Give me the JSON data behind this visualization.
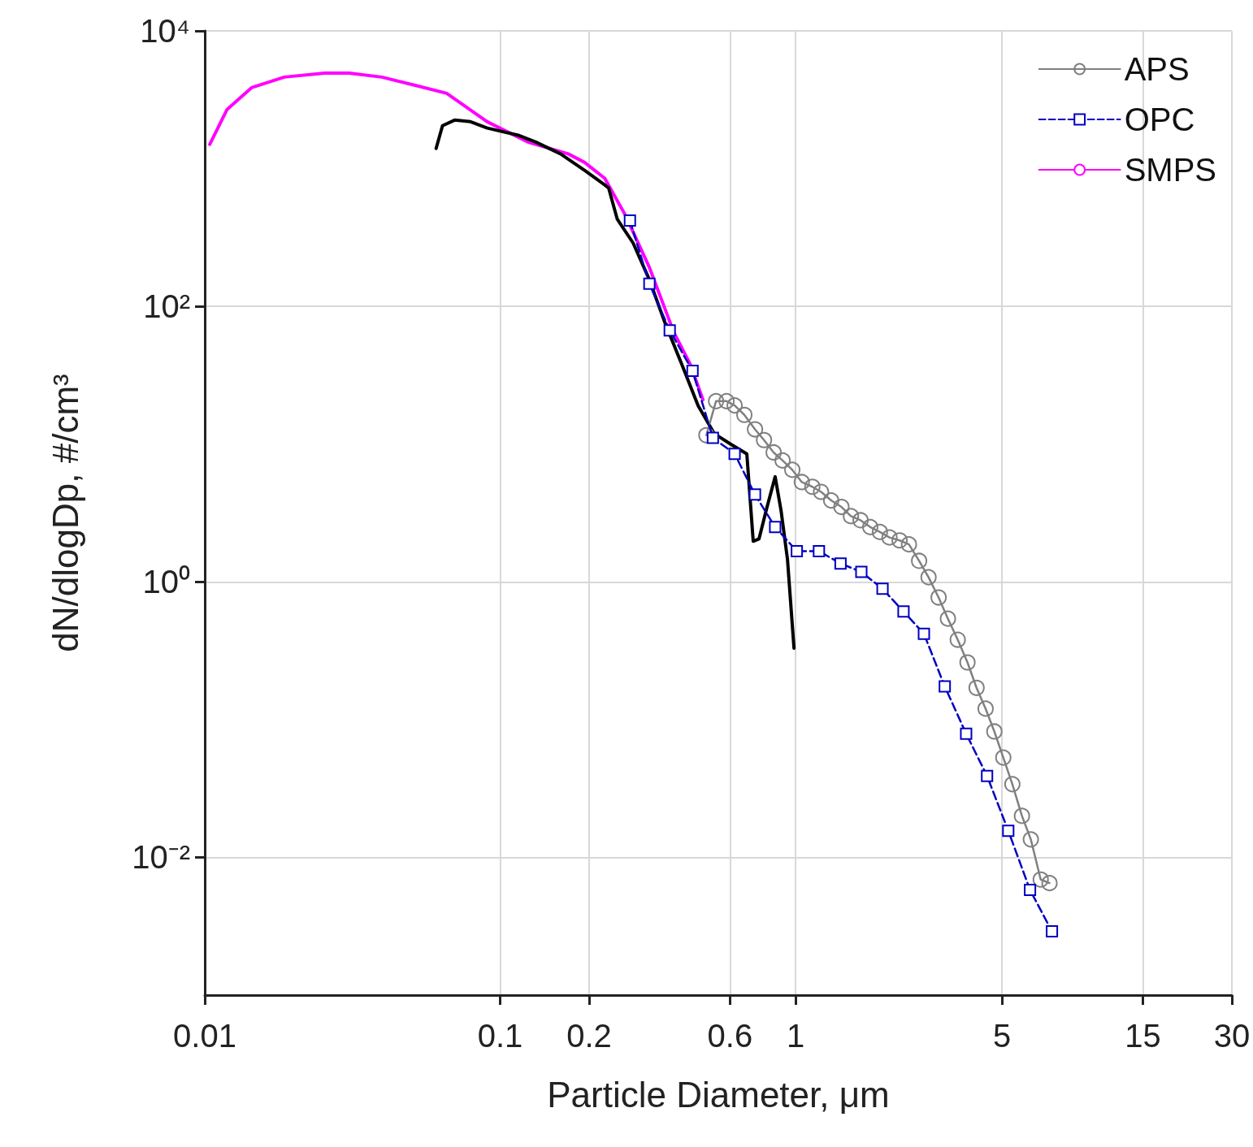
{
  "chart_data": {
    "type": "line",
    "xlabel": "Particle Diameter, μm",
    "ylabel": "dN/dlogDp, #/cm³",
    "log": "xy",
    "grid": true,
    "legend": "top right",
    "xlim": [
      0.01,
      30
    ],
    "xticks": [
      0.01,
      0.1,
      0.2,
      0.6,
      1,
      5,
      15,
      30
    ],
    "ylim": [
      0.001,
      10000
    ],
    "yticks": [
      {
        "value": 0.01,
        "label": "10⁻²"
      },
      {
        "value": 1,
        "label": "10⁰"
      },
      {
        "value": 100,
        "label": "10²"
      },
      {
        "value": 10000,
        "label": "10⁴"
      }
    ],
    "series": [
      {
        "name": "APS",
        "color": "#808080",
        "marker": "circle",
        "line_style": "solid",
        "x": [
          0.499,
          0.538,
          0.584,
          0.622,
          0.671,
          0.729,
          0.782,
          0.843,
          0.904,
          0.975,
          1.05,
          1.14,
          1.22,
          1.32,
          1.43,
          1.54,
          1.66,
          1.79,
          1.93,
          2.08,
          2.25,
          2.42,
          2.62,
          2.82,
          3.05,
          3.28,
          3.54,
          3.82,
          4.1,
          4.4,
          4.71,
          5.05,
          5.42,
          5.84,
          6.26,
          6.76,
          7.24
        ],
        "values": [
          11.6,
          20.5,
          20.5,
          19.1,
          16.3,
          12.8,
          10.7,
          8.7,
          7.6,
          6.5,
          5.3,
          4.9,
          4.5,
          3.9,
          3.5,
          3.0,
          2.8,
          2.5,
          2.3,
          2.1,
          2.0,
          1.87,
          1.42,
          1.08,
          0.77,
          0.54,
          0.38,
          0.26,
          0.17,
          0.12,
          0.082,
          0.053,
          0.034,
          0.02,
          0.0135,
          0.0069,
          0.0065
        ]
      },
      {
        "name": "OPC",
        "color": "#0000c0",
        "marker": "square",
        "line_style": "dashed",
        "x": [
          0.275,
          0.32,
          0.375,
          0.448,
          0.525,
          0.622,
          0.729,
          0.853,
          1.01,
          1.2,
          1.42,
          1.67,
          1.97,
          2.32,
          2.72,
          3.2,
          3.78,
          4.45,
          5.25,
          6.22,
          7.38
        ],
        "values": [
          420,
          146,
          67,
          34,
          11.1,
          8.5,
          4.3,
          2.5,
          1.67,
          1.67,
          1.36,
          1.18,
          0.89,
          0.61,
          0.42,
          0.174,
          0.079,
          0.039,
          0.0156,
          0.0058,
          0.0029
        ]
      },
      {
        "name": "SMPS",
        "color": "#ff00ff",
        "marker": "none",
        "line_style": "solid",
        "x": [
          0.0104,
          0.0119,
          0.0144,
          0.0186,
          0.0255,
          0.0308,
          0.0397,
          0.0512,
          0.0659,
          0.0904,
          0.124,
          0.17,
          0.193,
          0.226,
          0.265,
          0.32,
          0.387,
          0.44,
          0.486
        ],
        "values": [
          1500,
          2690,
          3870,
          4620,
          4940,
          4940,
          4620,
          4040,
          3520,
          2190,
          1560,
          1280,
          1110,
          850,
          462,
          192,
          65,
          38,
          21
        ]
      },
      {
        "color": "#000000",
        "marker": "none",
        "line_style": "solid",
        "x": [
          0.0607,
          0.0638,
          0.0701,
          0.0794,
          0.0904,
          0.116,
          0.132,
          0.16,
          0.193,
          0.226,
          0.233,
          0.249,
          0.282,
          0.32,
          0.363,
          0.412,
          0.468,
          0.531,
          0.603,
          0.684,
          0.719,
          0.752,
          0.801,
          0.853,
          0.893,
          0.939,
          0.988
        ],
        "values": [
          1400,
          2050,
          2250,
          2190,
          1970,
          1740,
          1560,
          1280,
          973,
          762,
          722,
          431,
          288,
          156,
          74,
          38,
          19,
          11.9,
          10,
          8.5,
          1.97,
          2.05,
          3.5,
          5.8,
          3.3,
          1.46,
          0.33
        ]
      }
    ]
  }
}
